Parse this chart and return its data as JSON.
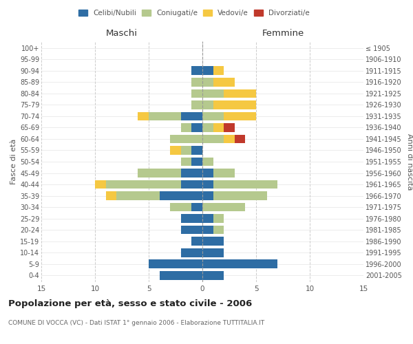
{
  "age_groups": [
    "0-4",
    "5-9",
    "10-14",
    "15-19",
    "20-24",
    "25-29",
    "30-34",
    "35-39",
    "40-44",
    "45-49",
    "50-54",
    "55-59",
    "60-64",
    "65-69",
    "70-74",
    "75-79",
    "80-84",
    "85-89",
    "90-94",
    "95-99",
    "100+"
  ],
  "birth_years": [
    "2001-2005",
    "1996-2000",
    "1991-1995",
    "1986-1990",
    "1981-1985",
    "1976-1980",
    "1971-1975",
    "1966-1970",
    "1961-1965",
    "1956-1960",
    "1951-1955",
    "1946-1950",
    "1941-1945",
    "1936-1940",
    "1931-1935",
    "1926-1930",
    "1921-1925",
    "1916-1920",
    "1911-1915",
    "1906-1910",
    "≤ 1905"
  ],
  "males": {
    "celibi": [
      4,
      5,
      2,
      1,
      2,
      2,
      1,
      4,
      2,
      2,
      1,
      1,
      0,
      1,
      2,
      0,
      0,
      0,
      1,
      0,
      0
    ],
    "coniugati": [
      0,
      0,
      0,
      0,
      0,
      0,
      2,
      4,
      7,
      4,
      1,
      1,
      3,
      1,
      3,
      1,
      1,
      1,
      0,
      0,
      0
    ],
    "vedovi": [
      0,
      0,
      0,
      0,
      0,
      0,
      0,
      1,
      1,
      0,
      0,
      1,
      0,
      0,
      1,
      0,
      0,
      0,
      0,
      0,
      0
    ],
    "divorziati": [
      0,
      0,
      0,
      0,
      0,
      0,
      0,
      0,
      0,
      0,
      0,
      0,
      0,
      0,
      0,
      0,
      0,
      0,
      0,
      0,
      0
    ]
  },
  "females": {
    "nubili": [
      2,
      7,
      2,
      2,
      1,
      1,
      0,
      1,
      1,
      1,
      0,
      0,
      0,
      0,
      0,
      0,
      0,
      0,
      1,
      0,
      0
    ],
    "coniugate": [
      0,
      0,
      0,
      0,
      1,
      1,
      4,
      5,
      6,
      2,
      1,
      0,
      2,
      1,
      2,
      1,
      2,
      1,
      0,
      0,
      0
    ],
    "vedove": [
      0,
      0,
      0,
      0,
      0,
      0,
      0,
      0,
      0,
      0,
      0,
      0,
      1,
      1,
      3,
      4,
      3,
      2,
      1,
      0,
      0
    ],
    "divorziate": [
      0,
      0,
      0,
      0,
      0,
      0,
      0,
      0,
      0,
      0,
      0,
      0,
      1,
      1,
      0,
      0,
      0,
      0,
      0,
      0,
      0
    ]
  },
  "colors": {
    "celibi_nubili": "#2e6da4",
    "coniugati": "#b5c98e",
    "vedovi": "#f5c842",
    "divorziati": "#c0392b"
  },
  "xlim": 15,
  "title": "Popolazione per età, sesso e stato civile - 2006",
  "subtitle": "COMUNE DI VOCCA (VC) - Dati ISTAT 1° gennaio 2006 - Elaborazione TUTTITALIA.IT",
  "ylabel_left": "Fasce di età",
  "ylabel_right": "Anni di nascita",
  "xlabel_maschi": "Maschi",
  "xlabel_femmine": "Femmine",
  "bg_color": "#ffffff",
  "grid_color": "#cccccc"
}
